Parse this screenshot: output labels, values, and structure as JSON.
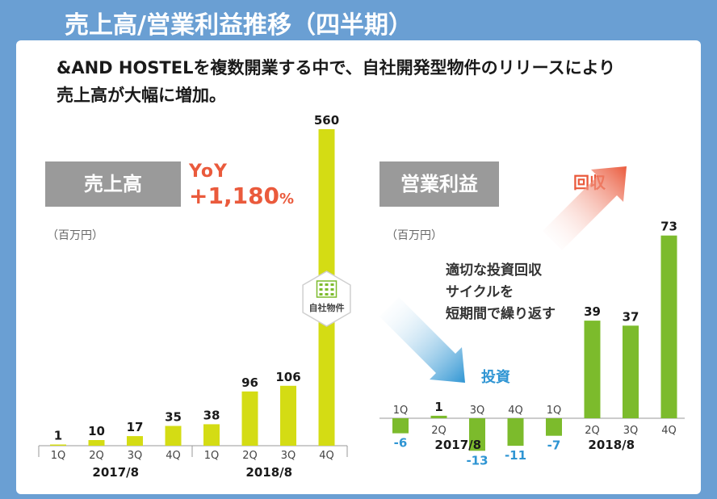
{
  "title": "売上高/営業利益推移（四半期）",
  "subtitle_line1": "&AND HOSTELを複数開業する中で、自社開発型物件のリリースにより",
  "subtitle_line2": "売上高が大幅に増加。",
  "colors": {
    "header_bg": "#6a9fd3",
    "revenue_bar": "#d4dc14",
    "op_bar": "#7cbb2c",
    "accent_red": "#ea5a3c",
    "accent_blue": "#2f95d3",
    "label_gray": "#9a9a9a"
  },
  "revenue": {
    "label": "売上高",
    "unit": "（百万円）",
    "yoy_label": "YoY",
    "yoy_value": "+1,180",
    "yoy_pct": "%",
    "badge_text": "自社物件",
    "badge_icon": "building-icon"
  },
  "operating_profit": {
    "label": "営業利益",
    "unit": "（百万円）",
    "recover_label": "回収",
    "invest_label": "投資",
    "cycle_lines": [
      "適切な投資回収",
      "サイクルを",
      "短期間で繰り返す"
    ]
  },
  "chart_data": [
    {
      "type": "bar",
      "title": "売上高",
      "ylabel": "百万円",
      "categories": [
        "1Q",
        "2Q",
        "3Q",
        "4Q",
        "1Q",
        "2Q",
        "3Q",
        "4Q"
      ],
      "groups": [
        {
          "name": "2017/8",
          "count": 4
        },
        {
          "name": "2018/8",
          "count": 4
        }
      ],
      "values": [
        1,
        10,
        17,
        35,
        38,
        96,
        106,
        560
      ],
      "ylim": [
        0,
        600
      ]
    },
    {
      "type": "bar",
      "title": "営業利益",
      "ylabel": "百万円",
      "categories": [
        "1Q",
        "2Q",
        "3Q",
        "4Q",
        "1Q",
        "2Q",
        "3Q",
        "4Q"
      ],
      "groups": [
        {
          "name": "2017/8",
          "count": 4
        },
        {
          "name": "2018/8",
          "count": 4
        }
      ],
      "values": [
        -6,
        1,
        -13,
        -11,
        -7,
        39,
        37,
        73
      ],
      "ylim": [
        -20,
        80
      ]
    }
  ]
}
